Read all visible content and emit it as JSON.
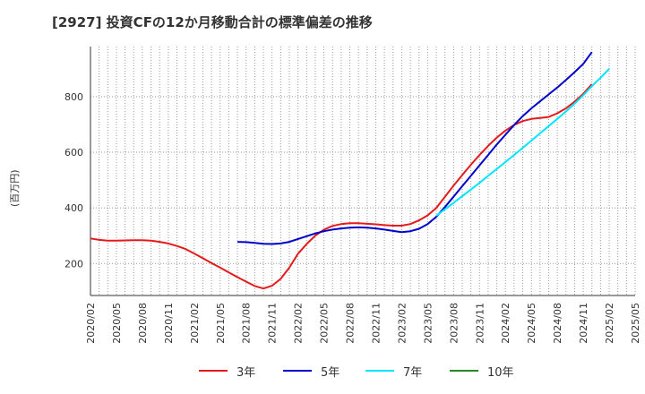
{
  "chart_data": {
    "type": "line",
    "title": "[2927]  投資CFの12か月移動合計の標準偏差の推移",
    "ylabel": "(百万円)",
    "xlabel": "",
    "ylim": [
      85,
      980
    ],
    "yticks": [
      200,
      400,
      600,
      800
    ],
    "grid": true,
    "legend_position": "bottom",
    "x_tick_labels": [
      "2020/02",
      "2020/05",
      "2020/08",
      "2020/11",
      "2021/02",
      "2021/05",
      "2021/08",
      "2021/11",
      "2022/02",
      "2022/05",
      "2022/08",
      "2022/11",
      "2023/02",
      "2023/05",
      "2023/08",
      "2023/11",
      "2024/02",
      "2024/05",
      "2024/08",
      "2024/11",
      "2025/02",
      "2025/05"
    ],
    "series": [
      {
        "name": "3年",
        "color": "#e41a1c",
        "points": [
          [
            "2020/02",
            290
          ],
          [
            "2020/03",
            285
          ],
          [
            "2020/04",
            282
          ],
          [
            "2020/05",
            282
          ],
          [
            "2020/06",
            283
          ],
          [
            "2020/07",
            284
          ],
          [
            "2020/08",
            284
          ],
          [
            "2020/09",
            282
          ],
          [
            "2020/10",
            278
          ],
          [
            "2020/11",
            272
          ],
          [
            "2020/12",
            263
          ],
          [
            "2021/01",
            252
          ],
          [
            "2021/02",
            236
          ],
          [
            "2021/03",
            219
          ],
          [
            "2021/04",
            202
          ],
          [
            "2021/05",
            185
          ],
          [
            "2021/06",
            168
          ],
          [
            "2021/07",
            151
          ],
          [
            "2021/08",
            135
          ],
          [
            "2021/09",
            119
          ],
          [
            "2021/10",
            110
          ],
          [
            "2021/11",
            120
          ],
          [
            "2021/12",
            145
          ],
          [
            "2022/01",
            185
          ],
          [
            "2022/02",
            235
          ],
          [
            "2022/03",
            270
          ],
          [
            "2022/04",
            300
          ],
          [
            "2022/05",
            322
          ],
          [
            "2022/06",
            335
          ],
          [
            "2022/07",
            342
          ],
          [
            "2022/08",
            345
          ],
          [
            "2022/09",
            345
          ],
          [
            "2022/10",
            343
          ],
          [
            "2022/11",
            341
          ],
          [
            "2022/12",
            338
          ],
          [
            "2023/01",
            336
          ],
          [
            "2023/02",
            336
          ],
          [
            "2023/03",
            342
          ],
          [
            "2023/04",
            355
          ],
          [
            "2023/05",
            373
          ],
          [
            "2023/06",
            400
          ],
          [
            "2023/07",
            440
          ],
          [
            "2023/08",
            480
          ],
          [
            "2023/09",
            518
          ],
          [
            "2023/10",
            555
          ],
          [
            "2023/11",
            590
          ],
          [
            "2023/12",
            623
          ],
          [
            "2024/01",
            653
          ],
          [
            "2024/02",
            678
          ],
          [
            "2024/03",
            698
          ],
          [
            "2024/04",
            712
          ],
          [
            "2024/05",
            720
          ],
          [
            "2024/06",
            723
          ],
          [
            "2024/07",
            727
          ],
          [
            "2024/08",
            740
          ],
          [
            "2024/09",
            758
          ],
          [
            "2024/10",
            782
          ],
          [
            "2024/11",
            810
          ],
          [
            "2024/12",
            845
          ]
        ]
      },
      {
        "name": "5年",
        "color": "#0000cc",
        "points": [
          [
            "2021/07",
            278
          ],
          [
            "2021/08",
            277
          ],
          [
            "2021/09",
            274
          ],
          [
            "2021/10",
            271
          ],
          [
            "2021/11",
            270
          ],
          [
            "2021/12",
            272
          ],
          [
            "2022/01",
            278
          ],
          [
            "2022/02",
            288
          ],
          [
            "2022/03",
            298
          ],
          [
            "2022/04",
            308
          ],
          [
            "2022/05",
            316
          ],
          [
            "2022/06",
            322
          ],
          [
            "2022/07",
            326
          ],
          [
            "2022/08",
            329
          ],
          [
            "2022/09",
            330
          ],
          [
            "2022/10",
            329
          ],
          [
            "2022/11",
            326
          ],
          [
            "2022/12",
            322
          ],
          [
            "2023/01",
            317
          ],
          [
            "2023/02",
            313
          ],
          [
            "2023/03",
            316
          ],
          [
            "2023/04",
            325
          ],
          [
            "2023/05",
            342
          ],
          [
            "2023/06",
            368
          ],
          [
            "2023/07",
            403
          ],
          [
            "2023/08",
            440
          ],
          [
            "2023/09",
            478
          ],
          [
            "2023/10",
            515
          ],
          [
            "2023/11",
            553
          ],
          [
            "2023/12",
            590
          ],
          [
            "2024/01",
            628
          ],
          [
            "2024/02",
            663
          ],
          [
            "2024/03",
            698
          ],
          [
            "2024/04",
            730
          ],
          [
            "2024/05",
            758
          ],
          [
            "2024/06",
            783
          ],
          [
            "2024/07",
            808
          ],
          [
            "2024/08",
            833
          ],
          [
            "2024/09",
            860
          ],
          [
            "2024/10",
            888
          ],
          [
            "2024/11",
            918
          ],
          [
            "2024/12",
            960
          ]
        ]
      },
      {
        "name": "7年",
        "color": "#00e5ff",
        "points": [
          [
            "2023/06",
            372
          ],
          [
            "2023/07",
            395
          ],
          [
            "2023/08",
            418
          ],
          [
            "2023/09",
            442
          ],
          [
            "2023/10",
            466
          ],
          [
            "2023/11",
            490
          ],
          [
            "2023/12",
            515
          ],
          [
            "2024/01",
            540
          ],
          [
            "2024/02",
            565
          ],
          [
            "2024/03",
            590
          ],
          [
            "2024/04",
            616
          ],
          [
            "2024/05",
            642
          ],
          [
            "2024/06",
            668
          ],
          [
            "2024/07",
            694
          ],
          [
            "2024/08",
            720
          ],
          [
            "2024/09",
            747
          ],
          [
            "2024/10",
            775
          ],
          [
            "2024/11",
            805
          ],
          [
            "2024/12",
            838
          ],
          [
            "2025/01",
            868
          ],
          [
            "2025/02",
            900
          ]
        ]
      },
      {
        "name": "10年",
        "color": "#228b22",
        "points": []
      }
    ]
  }
}
